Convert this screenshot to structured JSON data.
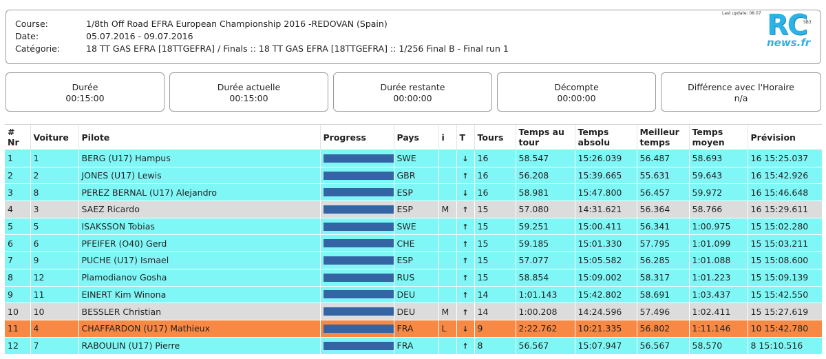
{
  "header": {
    "course_label": "Course:",
    "course_value": "1/8th Off Road EFRA European Championship 2016 -REDOVAN (Spain)",
    "date_label": "Date:",
    "date_value": "05.07.2016 - 09.07.2016",
    "category_label": "Catégorie:",
    "category_value": "18 TT GAS EFRA [18TTGEFRA] / Finals :: 18 TT GAS EFRA [18TTGEFRA] :: 1/256 Final B - Final run 1",
    "last_update": "Last update: 08.07",
    "badge": "SB3"
  },
  "logo": {
    "rc": "RC",
    "news": "news.fr",
    "color": "#2bb3e8"
  },
  "stats": [
    {
      "label": "Durée",
      "value": "00:15:00"
    },
    {
      "label": "Durée actuelle",
      "value": "00:15:00"
    },
    {
      "label": "Durée restante",
      "value": "00:00:00"
    },
    {
      "label": "Décompte",
      "value": "00:00:00"
    },
    {
      "label": "Différence avec l'Horaire",
      "value": "n/a"
    }
  ],
  "columns": {
    "nr": "# Nr",
    "voiture": "Voiture",
    "pilote": "Pilote",
    "progress": "Progress",
    "pays": "Pays",
    "i": "i",
    "t": "T",
    "tours": "Tours",
    "temps_tour": "Temps au tour",
    "temps_absolu": "Temps absolu",
    "meilleur": "Meilleur temps",
    "moyen": "Temps moyen",
    "prevision": "Prévision"
  },
  "colors": {
    "cyan": "#80f7f7",
    "gray": "#dcdcdc",
    "orange": "#f88945",
    "bar": "#3464a3"
  },
  "rows": [
    {
      "nr": "1",
      "voiture": "1",
      "pilote": "BERG (U17) Hampus",
      "progress": 1.0,
      "pays": "SWE",
      "i": "",
      "t": "down",
      "tours": "16",
      "temps_tour": "58.547",
      "temps_absolu": "15:26.039",
      "meilleur": "56.487",
      "moyen": "58.693",
      "prevision": "16 15:25.037",
      "style": "cyan"
    },
    {
      "nr": "2",
      "voiture": "2",
      "pilote": "JONES (U17) Lewis",
      "progress": 1.0,
      "pays": "GBR",
      "i": "",
      "t": "up",
      "tours": "16",
      "temps_tour": "56.208",
      "temps_absolu": "15:39.665",
      "meilleur": "55.631",
      "moyen": "59.643",
      "prevision": "16 15:42.926",
      "style": "cyan"
    },
    {
      "nr": "3",
      "voiture": "8",
      "pilote": "PEREZ BERNAL (U17) Alejandro",
      "progress": 1.0,
      "pays": "ESP",
      "i": "",
      "t": "down",
      "tours": "16",
      "temps_tour": "58.981",
      "temps_absolu": "15:47.800",
      "meilleur": "56.457",
      "moyen": "59.972",
      "prevision": "16 15:46.648",
      "style": "cyan"
    },
    {
      "nr": "4",
      "voiture": "3",
      "pilote": "SAEZ Ricardo",
      "progress": 1.0,
      "pays": "ESP",
      "i": "M",
      "t": "up",
      "tours": "15",
      "temps_tour": "57.080",
      "temps_absolu": "14:31.621",
      "meilleur": "56.364",
      "moyen": "58.766",
      "prevision": "16 15:29.611",
      "style": "gray"
    },
    {
      "nr": "5",
      "voiture": "5",
      "pilote": "ISAKSSON Tobias",
      "progress": 1.0,
      "pays": "SWE",
      "i": "",
      "t": "up",
      "tours": "15",
      "temps_tour": "59.251",
      "temps_absolu": "15:00.411",
      "meilleur": "56.341",
      "moyen": "1:00.975",
      "prevision": "15 15:02.280",
      "style": "cyan"
    },
    {
      "nr": "6",
      "voiture": "6",
      "pilote": "PFEIFER (O40) Gerd",
      "progress": 1.0,
      "pays": "CHE",
      "i": "",
      "t": "up",
      "tours": "15",
      "temps_tour": "59.185",
      "temps_absolu": "15:01.330",
      "meilleur": "57.795",
      "moyen": "1:01.099",
      "prevision": "15 15:03.211",
      "style": "cyan"
    },
    {
      "nr": "7",
      "voiture": "9",
      "pilote": "PUCHE (U17) Ismael",
      "progress": 1.0,
      "pays": "ESP",
      "i": "",
      "t": "up",
      "tours": "15",
      "temps_tour": "57.077",
      "temps_absolu": "15:05.582",
      "meilleur": "56.285",
      "moyen": "1:01.088",
      "prevision": "15 15:08.600",
      "style": "cyan"
    },
    {
      "nr": "8",
      "voiture": "12",
      "pilote": "Plamodianov Gosha",
      "progress": 1.0,
      "pays": "RUS",
      "i": "",
      "t": "up",
      "tours": "15",
      "temps_tour": "58.854",
      "temps_absolu": "15:09.002",
      "meilleur": "58.317",
      "moyen": "1:01.223",
      "prevision": "15 15:09.139",
      "style": "cyan"
    },
    {
      "nr": "9",
      "voiture": "11",
      "pilote": "EINERT Kim Winona",
      "progress": 1.0,
      "pays": "DEU",
      "i": "",
      "t": "up",
      "tours": "14",
      "temps_tour": "1:01.143",
      "temps_absolu": "15:42.802",
      "meilleur": "58.691",
      "moyen": "1:03.437",
      "prevision": "15 15:42.550",
      "style": "cyan"
    },
    {
      "nr": "10",
      "voiture": "10",
      "pilote": "BESSLER Christian",
      "progress": 1.0,
      "pays": "DEU",
      "i": "M",
      "t": "up",
      "tours": "14",
      "temps_tour": "1:00.208",
      "temps_absolu": "14:24.596",
      "meilleur": "57.496",
      "moyen": "1:02.411",
      "prevision": "15 15:27.619",
      "style": "gray"
    },
    {
      "nr": "11",
      "voiture": "4",
      "pilote": "CHAFFARDON (U17) Mathieux",
      "progress": 1.0,
      "pays": "FRA",
      "i": "L",
      "t": "down",
      "tours": "9",
      "temps_tour": "2:22.762",
      "temps_absolu": "10:21.335",
      "meilleur": "56.802",
      "moyen": "1:11.146",
      "prevision": "10 15:42.780",
      "style": "orange"
    },
    {
      "nr": "12",
      "voiture": "7",
      "pilote": "RABOULIN (U17) Pierre",
      "progress": 1.0,
      "pays": "FRA",
      "i": "",
      "t": "up",
      "tours": "8",
      "temps_tour": "56.567",
      "temps_absolu": "15:07.947",
      "meilleur": "56.567",
      "moyen": "58.570",
      "prevision": "8 15:10.516",
      "style": "cyan"
    }
  ]
}
